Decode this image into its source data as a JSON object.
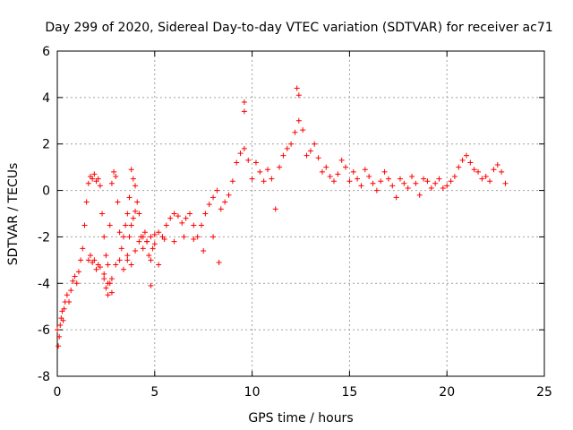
{
  "chart_data": {
    "type": "scatter",
    "title": "Day 299 of 2020, Sidereal Day-to-day VTEC variation (SDTVAR) for receiver ac71",
    "xlabel": "GPS time / hours",
    "ylabel": "SDTVAR / TECUs",
    "xlim": [
      0,
      25
    ],
    "ylim": [
      -8,
      6
    ],
    "xticks": [
      0,
      5,
      10,
      15,
      20,
      25
    ],
    "yticks": [
      -8,
      -6,
      -4,
      -2,
      0,
      2,
      4,
      6
    ],
    "xtick_labels": [
      "0",
      "5",
      "10",
      "15",
      "20",
      "25"
    ],
    "ytick_labels": [
      "-8",
      "-6",
      "-4",
      "-2",
      "0",
      "2",
      "4",
      "6"
    ],
    "grid": true,
    "marker": "+",
    "color": "#ff0000",
    "series": [
      {
        "name": "SDTVAR",
        "x": [
          0.0,
          0.05,
          0.1,
          0.15,
          0.2,
          0.25,
          0.3,
          0.35,
          0.4,
          0.5,
          0.6,
          0.7,
          0.8,
          0.9,
          1.0,
          1.1,
          1.2,
          1.3,
          1.4,
          1.5,
          1.6,
          1.7,
          1.8,
          1.9,
          2.0,
          2.1,
          2.2,
          2.3,
          2.4,
          2.5,
          2.6,
          2.7,
          2.8,
          2.9,
          3.0,
          3.1,
          3.2,
          3.3,
          3.4,
          3.5,
          3.6,
          3.7,
          3.8,
          3.9,
          4.0,
          4.1,
          4.2,
          4.3,
          4.4,
          4.5,
          4.6,
          4.7,
          4.8,
          4.9,
          5.0,
          5.2,
          5.4,
          5.6,
          5.8,
          6.0,
          6.2,
          6.4,
          6.6,
          6.8,
          7.0,
          7.2,
          7.4,
          7.6,
          7.8,
          8.0,
          8.2,
          8.4,
          8.6,
          8.8,
          9.0,
          9.2,
          9.4,
          9.6,
          9.8,
          10.0,
          10.2,
          10.4,
          10.6,
          10.8,
          11.0,
          11.2,
          11.4,
          11.6,
          11.8,
          12.0,
          12.2,
          12.4,
          12.6,
          12.8,
          13.0,
          13.2,
          13.4,
          13.6,
          13.8,
          14.0,
          14.2,
          14.4,
          14.6,
          14.8,
          15.0,
          15.2,
          15.4,
          15.6,
          15.8,
          16.0,
          16.2,
          16.4,
          16.6,
          16.8,
          17.0,
          17.2,
          17.4,
          17.6,
          17.8,
          18.0,
          18.2,
          18.4,
          18.6,
          18.8,
          19.0,
          19.2,
          19.4,
          19.6,
          19.8,
          20.0,
          20.2,
          20.4,
          20.6,
          20.8,
          21.0,
          21.2,
          21.4,
          21.6,
          21.8,
          22.0,
          22.2,
          22.4,
          22.6,
          22.8,
          23.0,
          1.6,
          1.7,
          1.8,
          1.9,
          2.0,
          2.1,
          2.2,
          2.4,
          2.6,
          2.8,
          3.0,
          3.2,
          3.4,
          3.6,
          3.8,
          4.0,
          4.2,
          4.4,
          4.6,
          4.8,
          5.0,
          5.5,
          6.0,
          6.5,
          7.0,
          7.5,
          8.0,
          2.4,
          2.5,
          2.6,
          2.7,
          2.8,
          3.6,
          3.7,
          3.8,
          3.9,
          4.0,
          8.3,
          9.6,
          9.6,
          12.3,
          12.4,
          4.8,
          5.2
        ],
        "y": [
          -6.0,
          -6.7,
          -6.3,
          -5.8,
          -5.5,
          -5.2,
          -5.6,
          -5.1,
          -4.8,
          -4.5,
          -4.8,
          -4.3,
          -3.9,
          -3.7,
          -4.0,
          -3.5,
          -3.0,
          -2.5,
          -1.5,
          -0.5,
          0.3,
          0.6,
          0.5,
          0.7,
          0.4,
          0.5,
          0.2,
          -1.0,
          -2.0,
          -2.8,
          -3.2,
          -1.5,
          0.3,
          0.8,
          0.6,
          -0.5,
          -1.8,
          -2.5,
          -2.0,
          -1.5,
          -1.0,
          -0.3,
          0.9,
          0.5,
          0.2,
          -0.5,
          -1.0,
          -2.0,
          -2.5,
          -1.8,
          -2.2,
          -2.8,
          -3.0,
          -2.5,
          -2.3,
          -1.8,
          -2.0,
          -1.5,
          -1.2,
          -1.0,
          -1.1,
          -1.4,
          -1.2,
          -1.0,
          -1.5,
          -2.0,
          -1.5,
          -1.0,
          -0.6,
          -0.3,
          0.0,
          -0.8,
          -0.5,
          -0.2,
          0.4,
          1.2,
          1.6,
          1.8,
          1.3,
          0.5,
          1.2,
          0.8,
          0.4,
          0.9,
          0.5,
          -0.8,
          1.0,
          1.5,
          1.8,
          2.0,
          2.5,
          3.0,
          2.6,
          1.5,
          1.7,
          2.0,
          1.4,
          0.8,
          1.0,
          0.6,
          0.4,
          0.7,
          1.3,
          1.0,
          0.4,
          0.8,
          0.5,
          0.2,
          0.9,
          0.6,
          0.3,
          0.0,
          0.4,
          0.8,
          0.5,
          0.2,
          -0.3,
          0.5,
          0.3,
          0.1,
          0.6,
          0.3,
          -0.2,
          0.5,
          0.4,
          0.1,
          0.3,
          0.5,
          0.1,
          0.2,
          0.4,
          0.6,
          1.0,
          1.3,
          1.5,
          1.2,
          0.9,
          0.8,
          0.5,
          0.6,
          0.4,
          0.9,
          1.1,
          0.8,
          0.3,
          -3.0,
          -2.8,
          -3.1,
          -3.0,
          -3.4,
          -3.2,
          -3.3,
          -3.6,
          -4.0,
          -3.8,
          -3.2,
          -3.0,
          -3.4,
          -3.0,
          -3.2,
          -2.6,
          -2.2,
          -2.0,
          -2.2,
          -2.0,
          -1.9,
          -2.1,
          -2.2,
          -2.0,
          -2.1,
          -2.6,
          -2.0,
          -3.8,
          -4.2,
          -4.5,
          -4.0,
          -4.4,
          -2.8,
          -2.0,
          -1.5,
          -1.2,
          -0.9,
          -3.1,
          3.8,
          3.4,
          4.4,
          4.1,
          -4.1,
          -3.2
        ]
      }
    ]
  }
}
